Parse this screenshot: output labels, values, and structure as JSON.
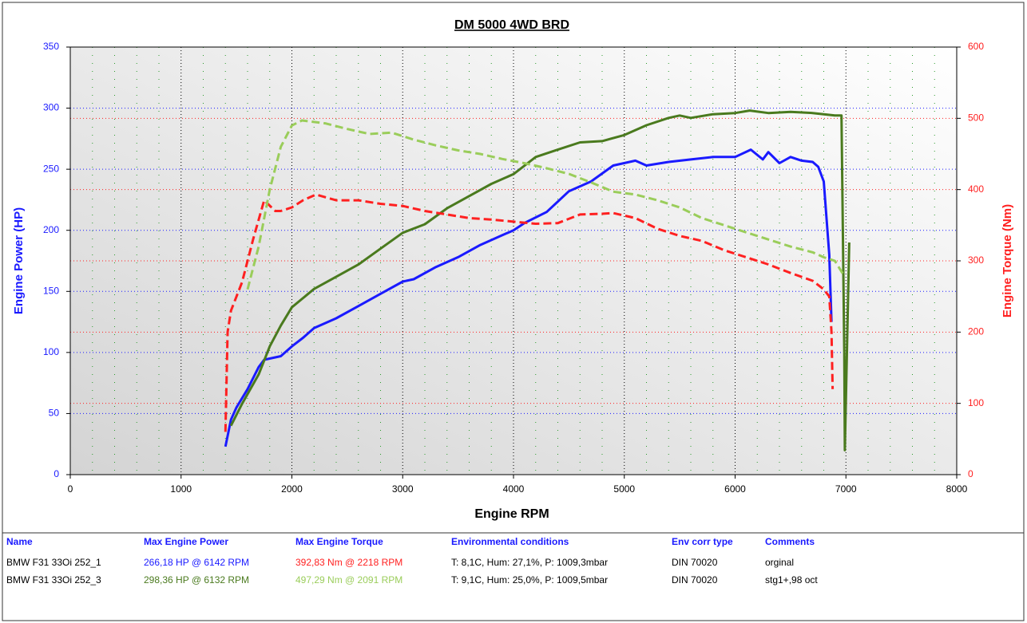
{
  "chart_data": {
    "type": "line",
    "title": "DM 5000 4WD BRD",
    "xlabel": "Engine RPM",
    "ylabel": "Engine Power (HP)",
    "y2label": "Engine Torque (Nm)",
    "xlim": [
      0,
      8000
    ],
    "xticks": [
      0,
      1000,
      2000,
      3000,
      4000,
      5000,
      6000,
      7000,
      8000
    ],
    "ylim": [
      0,
      350
    ],
    "yticks": [
      0,
      50,
      100,
      150,
      200,
      250,
      300,
      350
    ],
    "y2lim": [
      0,
      600
    ],
    "y2ticks": [
      0,
      100,
      200,
      300,
      400,
      500,
      600
    ],
    "grid": true,
    "series": [
      {
        "color": "#1a1aff",
        "dashed": false,
        "x": [
          1400,
          1450,
          1500,
          1600,
          1700,
          1750,
          1900,
          2000,
          2100,
          2200,
          2400,
          2600,
          2800,
          3000,
          3100,
          3300,
          3500,
          3700,
          3900,
          4000,
          4100,
          4300,
          4500,
          4700,
          4900,
          5100,
          5200,
          5400,
          5600,
          5800,
          6000,
          6142,
          6250,
          6300,
          6400,
          6500,
          6600,
          6700,
          6750,
          6800,
          6850,
          6870
        ],
        "values": [
          23,
          45,
          55,
          70,
          88,
          94,
          97,
          105,
          112,
          120,
          128,
          138,
          148,
          158,
          160,
          170,
          178,
          188,
          196,
          200,
          206,
          215,
          232,
          240,
          253,
          257,
          253,
          256,
          258,
          260,
          260,
          266,
          258,
          264,
          255,
          260,
          257,
          256,
          252,
          240,
          180,
          125
        ]
      },
      {
        "color": "#4a7a1e",
        "dashed": false,
        "x": [
          1450,
          1550,
          1700,
          1800,
          1900,
          2000,
          2200,
          2400,
          2600,
          2800,
          3000,
          3200,
          3400,
          3600,
          3800,
          4000,
          4200,
          4400,
          4600,
          4800,
          5000,
          5200,
          5400,
          5500,
          5600,
          5800,
          6000,
          6132,
          6300,
          6500,
          6700,
          6900,
          6960,
          6985,
          6990,
          7030
        ],
        "values": [
          40,
          58,
          82,
          105,
          122,
          137,
          152,
          162,
          172,
          185,
          198,
          205,
          218,
          228,
          238,
          246,
          260,
          266,
          272,
          273,
          278,
          286,
          292,
          294,
          292,
          295,
          296,
          298,
          296,
          297,
          296,
          294,
          294,
          100,
          20,
          190
        ]
      },
      {
        "color": "#ff2020",
        "dashed": true,
        "axis": "y2",
        "x": [
          1400,
          1420,
          1450,
          1550,
          1650,
          1750,
          1850,
          1900,
          2000,
          2100,
          2218,
          2400,
          2600,
          2800,
          3000,
          3200,
          3400,
          3600,
          3800,
          4000,
          4200,
          4400,
          4600,
          4800,
          4900,
          5100,
          5300,
          5500,
          5700,
          5900,
          6100,
          6300,
          6500,
          6700,
          6800,
          6850,
          6870,
          6880
        ],
        "values": [
          60,
          200,
          230,
          270,
          330,
          385,
          370,
          370,
          375,
          385,
          393,
          385,
          385,
          380,
          377,
          370,
          365,
          360,
          358,
          355,
          352,
          353,
          365,
          366,
          367,
          360,
          345,
          335,
          328,
          315,
          305,
          295,
          283,
          272,
          260,
          250,
          200,
          120
        ]
      },
      {
        "color": "#9acd5a",
        "dashed": true,
        "axis": "y2",
        "x": [
          1600,
          1700,
          1800,
          1900,
          2000,
          2091,
          2300,
          2500,
          2700,
          2900,
          3100,
          3300,
          3500,
          3700,
          3900,
          4100,
          4300,
          4500,
          4700,
          4900,
          5100,
          5300,
          5500,
          5700,
          5900,
          6100,
          6300,
          6500,
          6700,
          6800,
          6900,
          6980
        ],
        "values": [
          260,
          320,
          400,
          460,
          490,
          497,
          493,
          485,
          478,
          480,
          470,
          462,
          455,
          450,
          443,
          437,
          430,
          422,
          410,
          397,
          393,
          385,
          375,
          360,
          350,
          340,
          330,
          320,
          312,
          305,
          300,
          280
        ]
      }
    ]
  },
  "table": {
    "columns": [
      "Name",
      "Max Engine Power",
      "Max Engine Torque",
      "Environmental conditions",
      "Env corr type",
      "Comments"
    ],
    "rows": [
      [
        "BMW F31 33Oi 252_1",
        "266,18 HP @ 6142 RPM",
        "392,83 Nm @ 2218 RPM",
        "T: 8,1C, Hum: 27,1%, P: 1009,3mbar",
        "DIN 70020",
        "orginal"
      ],
      [
        "BMW F31 33Oi 252_3",
        "298,36 HP @ 6132 RPM",
        "497,29 Nm @ 2091 RPM",
        "T: 9,1C, Hum: 25,0%, P: 1009,5mbar",
        "DIN 70020",
        "stg1+,98 oct"
      ]
    ]
  }
}
